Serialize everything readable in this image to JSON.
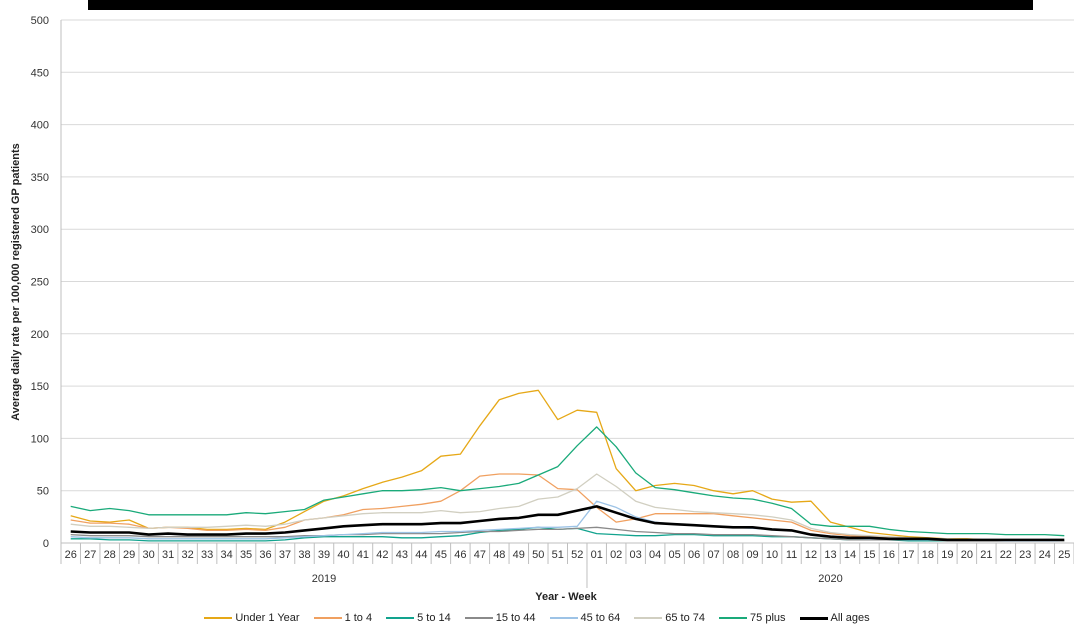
{
  "chart_data": {
    "type": "line",
    "xlabel": "Year - Week",
    "ylabel": "Average daily rate per 100,000 registered GP patients",
    "ylim": [
      0,
      500
    ],
    "yticks": [
      0,
      50,
      100,
      150,
      200,
      250,
      300,
      350,
      400,
      450,
      500
    ],
    "grid": true,
    "legend_position": "bottom",
    "categories": [
      "26",
      "27",
      "28",
      "29",
      "30",
      "31",
      "32",
      "33",
      "34",
      "35",
      "36",
      "37",
      "38",
      "39",
      "40",
      "41",
      "42",
      "43",
      "44",
      "45",
      "46",
      "47",
      "48",
      "49",
      "50",
      "51",
      "52",
      "01",
      "02",
      "03",
      "04",
      "05",
      "06",
      "07",
      "08",
      "09",
      "10",
      "11",
      "12",
      "13",
      "14",
      "15",
      "16",
      "17",
      "18",
      "19",
      "20",
      "21",
      "22",
      "23",
      "24",
      "25"
    ],
    "year_groups": [
      {
        "label": "2019",
        "from": 0,
        "to": 26
      },
      {
        "label": "2020",
        "from": 27,
        "to": 51
      }
    ],
    "series": [
      {
        "name": "Under 1 Year",
        "color": "#E6A817",
        "width": 1.3,
        "values": [
          26,
          21,
          20,
          22,
          14,
          15,
          15,
          13,
          13,
          14,
          13,
          20,
          30,
          40,
          45,
          52,
          58,
          63,
          69,
          83,
          85,
          112,
          137,
          143,
          146,
          118,
          127,
          125,
          71,
          50,
          55,
          57,
          55,
          50,
          47,
          50,
          42,
          39,
          40,
          20,
          15,
          10,
          8,
          6,
          5,
          4,
          4,
          3,
          3,
          3,
          3,
          2
        ]
      },
      {
        "name": "1 to 4",
        "color": "#F0A060",
        "width": 1.3,
        "values": [
          22,
          19,
          19,
          18,
          14,
          15,
          14,
          12,
          12,
          13,
          12,
          15,
          22,
          24,
          27,
          32,
          33,
          35,
          37,
          40,
          50,
          64,
          66,
          66,
          65,
          52,
          51,
          34,
          20,
          23,
          28,
          28,
          28,
          28,
          26,
          24,
          22,
          20,
          12,
          9,
          7,
          6,
          5,
          4,
          3,
          3,
          3,
          2,
          2,
          2,
          2,
          2
        ]
      },
      {
        "name": "5 to 14",
        "color": "#12A38E",
        "width": 1.3,
        "values": [
          4,
          4,
          3,
          3,
          2,
          2,
          2,
          2,
          2,
          2,
          2,
          3,
          5,
          6,
          6,
          6,
          6,
          5,
          5,
          6,
          7,
          10,
          12,
          13,
          15,
          13,
          14,
          9,
          8,
          7,
          7,
          8,
          8,
          7,
          7,
          7,
          6,
          6,
          5,
          4,
          3,
          3,
          3,
          2,
          2,
          2,
          2,
          2,
          2,
          2,
          2,
          2
        ]
      },
      {
        "name": "15 to 44",
        "color": "#8A8A8A",
        "width": 1.3,
        "values": [
          8,
          7,
          7,
          7,
          6,
          6,
          6,
          6,
          6,
          6,
          6,
          6,
          7,
          7,
          8,
          8,
          9,
          9,
          9,
          9,
          10,
          11,
          11,
          12,
          13,
          13,
          14,
          15,
          13,
          11,
          10,
          9,
          9,
          8,
          8,
          8,
          7,
          6,
          5,
          4,
          3,
          3,
          3,
          3,
          3,
          2,
          2,
          2,
          2,
          2,
          2,
          2
        ]
      },
      {
        "name": "45 to 64",
        "color": "#9DC3E6",
        "width": 1.3,
        "values": [
          6,
          5,
          5,
          5,
          4,
          4,
          4,
          4,
          4,
          4,
          4,
          5,
          6,
          7,
          8,
          9,
          10,
          10,
          10,
          11,
          11,
          12,
          13,
          14,
          15,
          15,
          16,
          40,
          34,
          25,
          20,
          18,
          17,
          16,
          15,
          14,
          13,
          12,
          8,
          6,
          5,
          4,
          4,
          3,
          3,
          3,
          3,
          3,
          2,
          2,
          2,
          2
        ]
      },
      {
        "name": "65 to 74",
        "color": "#D1CFC1",
        "width": 1.3,
        "values": [
          18,
          16,
          16,
          15,
          14,
          15,
          15,
          15,
          16,
          17,
          16,
          18,
          22,
          24,
          26,
          28,
          29,
          29,
          29,
          31,
          29,
          30,
          33,
          35,
          42,
          44,
          52,
          66,
          54,
          40,
          34,
          32,
          30,
          29,
          28,
          27,
          25,
          22,
          14,
          10,
          8,
          7,
          6,
          5,
          4,
          4,
          3,
          3,
          3,
          3,
          3,
          2
        ]
      },
      {
        "name": "75 plus",
        "color": "#1AAA7A",
        "width": 1.3,
        "values": [
          35,
          31,
          33,
          31,
          27,
          27,
          27,
          27,
          27,
          29,
          28,
          30,
          32,
          41,
          44,
          47,
          50,
          50,
          51,
          53,
          50,
          52,
          54,
          57,
          65,
          73,
          93,
          111,
          92,
          67,
          53,
          51,
          48,
          45,
          43,
          42,
          38,
          33,
          18,
          16,
          16,
          16,
          13,
          11,
          10,
          9,
          9,
          9,
          8,
          8,
          8,
          7
        ]
      },
      {
        "name": "All ages",
        "color": "#000000",
        "width": 2.6,
        "values": [
          11,
          10,
          10,
          10,
          8,
          9,
          8,
          8,
          8,
          9,
          9,
          10,
          12,
          14,
          16,
          17,
          18,
          18,
          18,
          19,
          19,
          21,
          23,
          24,
          27,
          27,
          31,
          35,
          29,
          23,
          19,
          18,
          17,
          16,
          15,
          15,
          13,
          12,
          8,
          6,
          5,
          5,
          4,
          4,
          4,
          3,
          3,
          3,
          3,
          3,
          3,
          3
        ]
      }
    ]
  }
}
